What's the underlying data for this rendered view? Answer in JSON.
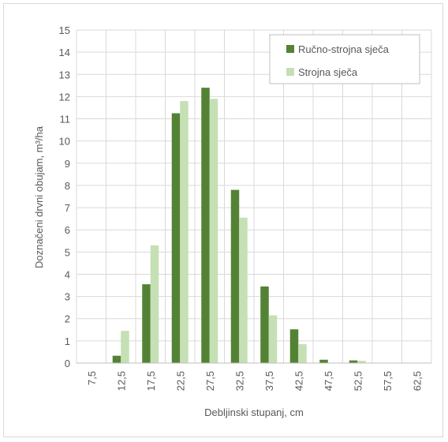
{
  "chart_data": {
    "type": "bar",
    "title": "",
    "xlabel": "Debljinski stupanj, cm",
    "ylabel": "Doznačeni drvni obujam, m³/ha",
    "ylim": [
      0,
      15
    ],
    "yticks": [
      "0",
      "1",
      "2",
      "3",
      "4",
      "5",
      "6",
      "7",
      "8",
      "9",
      "10",
      "11",
      "12",
      "13",
      "14",
      "15"
    ],
    "grid": true,
    "legend_position": "top-right",
    "categories": [
      "7,5",
      "12,5",
      "17,5",
      "22,5",
      "27,5",
      "32,5",
      "37,5",
      "42,5",
      "47,5",
      "52,5",
      "57,5",
      "62,5"
    ],
    "series": [
      {
        "name": "Ručno-strojna sječa",
        "color": "#548235",
        "values": [
          0,
          0.33,
          3.55,
          11.25,
          12.4,
          7.8,
          3.45,
          1.52,
          0.15,
          0.12,
          0,
          0
        ]
      },
      {
        "name": "Strojna sječa",
        "color": "#c5e0b4",
        "values": [
          0,
          1.45,
          5.3,
          11.8,
          11.9,
          6.55,
          2.15,
          0.85,
          0,
          0.1,
          0,
          0
        ]
      }
    ]
  }
}
